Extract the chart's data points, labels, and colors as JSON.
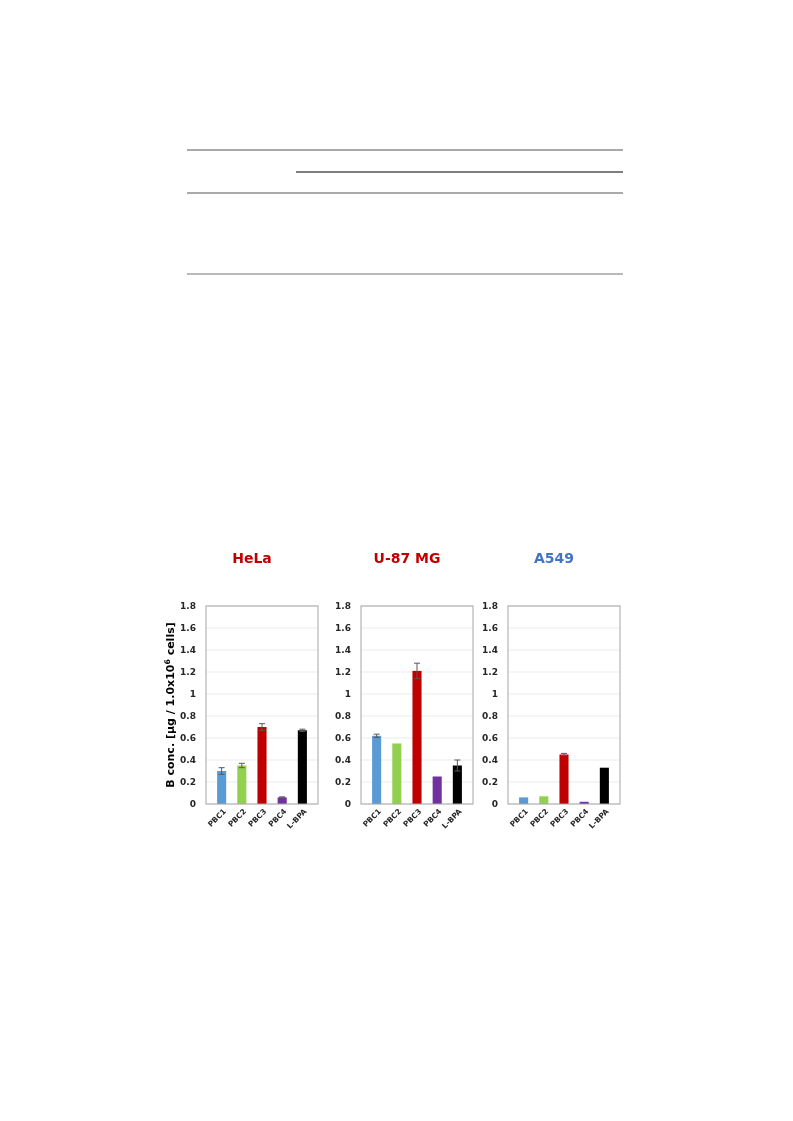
{
  "chart_data": [
    {
      "type": "bar",
      "title": "HeLa",
      "ylabel": "B conc. [µg / 1.0x10$^{6}$ cells]",
      "categories": [
        "PBC1",
        "PBC2",
        "PBC3",
        "PBC4",
        "L-BPA"
      ],
      "values": [
        0.3,
        0.35,
        0.7,
        0.06,
        0.67
      ],
      "errors": [
        0.03,
        0.02,
        0.03,
        0.005,
        0.01
      ],
      "colors": [
        "#5b9bd5",
        "#92d050",
        "#c00000",
        "#7030a0",
        "#000000"
      ],
      "ylim": [
        0,
        1.8
      ],
      "yticks": [
        0,
        0.2,
        0.4,
        0.6,
        0.8,
        1,
        1.2,
        1.4,
        1.6,
        1.8
      ],
      "grid": "y"
    },
    {
      "type": "bar",
      "title": "U-87 MG",
      "categories": [
        "PBC1",
        "PBC2",
        "PBC3",
        "PBC4",
        "L-BPA"
      ],
      "values": [
        0.62,
        0.55,
        1.21,
        0.25,
        0.35
      ],
      "errors": [
        0.015,
        null,
        0.07,
        null,
        0.05
      ],
      "colors": [
        "#5b9bd5",
        "#92d050",
        "#c00000",
        "#7030a0",
        "#000000"
      ],
      "ylim": [
        0,
        1.8
      ],
      "yticks": [
        0,
        0.2,
        0.4,
        0.6,
        0.8,
        1,
        1.2,
        1.4,
        1.6,
        1.8
      ],
      "grid": "y"
    },
    {
      "type": "bar",
      "title": "A549",
      "categories": [
        "PBC1",
        "PBC2",
        "PBC3",
        "PBC4",
        "L-BPA"
      ],
      "values": [
        0.06,
        0.07,
        0.45,
        0.02,
        0.33
      ],
      "errors": [
        null,
        null,
        0.01,
        null,
        null
      ],
      "colors": [
        "#5b9bd5",
        "#92d050",
        "#c00000",
        "#7030a0",
        "#000000"
      ],
      "ylim": [
        0,
        1.8
      ],
      "yticks": [
        0,
        0.2,
        0.4,
        0.6,
        0.8,
        1,
        1.2,
        1.4,
        1.6,
        1.8
      ],
      "grid": "y"
    }
  ]
}
